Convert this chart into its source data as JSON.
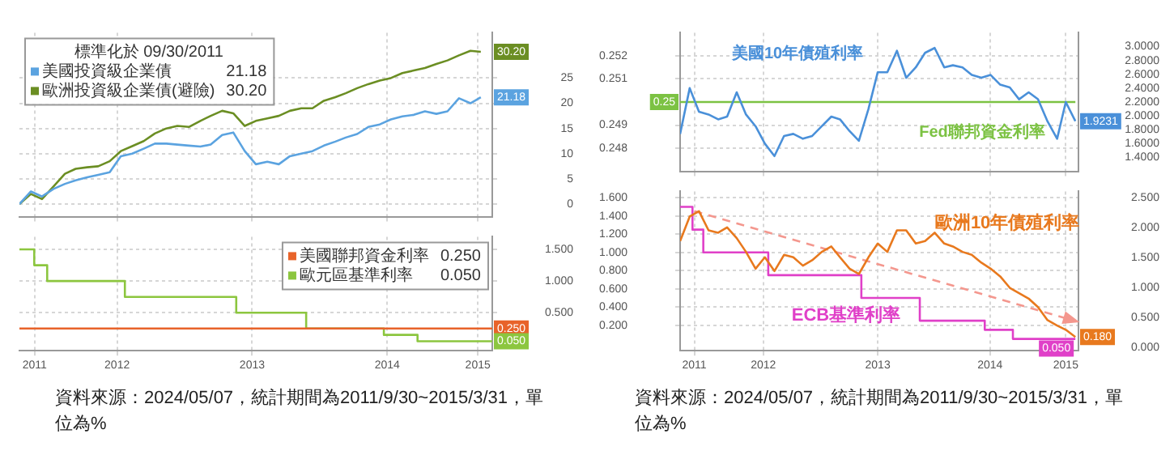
{
  "chart_data": [
    {
      "type": "line",
      "legend_title": "標準化於 09/30/2011",
      "legend": "top left",
      "grid": true,
      "tick_labels": "y",
      "x": [
        "2011-09-30",
        "2011-10-31",
        "2011-11-30",
        "2011-12-31",
        "2012-01-31",
        "2012-02-29",
        "2012-03-31",
        "2012-04-30",
        "2012-05-31",
        "2012-06-30",
        "2012-07-31",
        "2012-08-31",
        "2012-09-30",
        "2012-10-31",
        "2012-11-30",
        "2012-12-31",
        "2013-01-31",
        "2013-02-28",
        "2013-03-31",
        "2013-04-30",
        "2013-05-31",
        "2013-06-30",
        "2013-07-31",
        "2013-08-31",
        "2013-09-30",
        "2013-10-31",
        "2013-11-30",
        "2013-12-31",
        "2014-01-31",
        "2014-02-28",
        "2014-03-31",
        "2014-04-30",
        "2014-05-31",
        "2014-06-30",
        "2014-07-31",
        "2014-08-31",
        "2014-09-30",
        "2014-10-31",
        "2014-11-30",
        "2014-12-31",
        "2015-01-31",
        "2015-02-28"
      ],
      "xlim": [
        "2011-09-30",
        "2015-03-31"
      ],
      "xticks": [
        {
          "value": "2011-11-10",
          "label": null
        },
        {
          "value": "2012-06-20",
          "label": null
        },
        {
          "value": "2013-06-20",
          "label": null
        },
        {
          "value": "2014-06-20",
          "label": null
        },
        {
          "value": "2015-02-20",
          "label": null
        }
      ],
      "ylim": [
        -2.5,
        34
      ],
      "yticks": [
        0,
        5,
        10,
        15,
        20,
        25
      ],
      "series": [
        {
          "name": "美國投資級企業債",
          "color": "#5ba3e0",
          "values": [
            0,
            2.5,
            1.5,
            3,
            4,
            4.7,
            5.3,
            5.8,
            6.3,
            9.5,
            10,
            11,
            12,
            12,
            11.8,
            11.6,
            11.4,
            11.8,
            13.7,
            14.2,
            10.5,
            7.9,
            8.4,
            7.9,
            9.5,
            10,
            10.5,
            11.6,
            12.4,
            13.2,
            13.9,
            15.3,
            15.8,
            16.8,
            17.4,
            17.7,
            18.4,
            17.9,
            18.4,
            21,
            20,
            21.18
          ],
          "value_labels": [
            null,
            null,
            null,
            null,
            null,
            null,
            null,
            null,
            null,
            null,
            null,
            null,
            null,
            null,
            null,
            null,
            null,
            null,
            null,
            null,
            null,
            null,
            null,
            null,
            null,
            null,
            null,
            null,
            null,
            null,
            null,
            null,
            null,
            null,
            null,
            null,
            null,
            null,
            null,
            null,
            null,
            "21.18"
          ]
        },
        {
          "name": "歐洲投資級企業債(避險)",
          "color": "#6b8e23",
          "values": [
            0,
            2,
            1,
            3.5,
            6,
            7,
            7.3,
            7.5,
            8.5,
            10.5,
            11.5,
            12.5,
            14,
            15,
            15.5,
            15.3,
            16.5,
            17.5,
            18.5,
            18,
            15.5,
            16.5,
            17,
            17.5,
            18.5,
            19,
            19,
            20.5,
            21.2,
            22,
            23,
            23.8,
            24.5,
            25,
            26,
            26.5,
            27,
            27.8,
            28.5,
            29.5,
            30.4,
            30.2
          ],
          "value_labels": [
            null,
            null,
            null,
            null,
            null,
            null,
            null,
            null,
            null,
            null,
            null,
            null,
            null,
            null,
            null,
            null,
            null,
            null,
            null,
            null,
            null,
            null,
            null,
            null,
            null,
            null,
            null,
            null,
            null,
            null,
            null,
            null,
            null,
            null,
            null,
            null,
            null,
            null,
            null,
            null,
            null,
            "30.20"
          ]
        }
      ]
    },
    {
      "type": "step",
      "legend": "top right",
      "grid": true,
      "xlim": [
        "2011-09-30",
        "2015-03-31"
      ],
      "xticks": [
        {
          "value": "2011-11-10",
          "label": "2011"
        },
        {
          "value": "2012-06-20",
          "label": "2012"
        },
        {
          "value": "2013-06-20",
          "label": "2013"
        },
        {
          "value": "2014-06-20",
          "label": "2014"
        },
        {
          "value": "2015-02-20",
          "label": "2015"
        }
      ],
      "ylim": [
        -0.1,
        1.7
      ],
      "yticks": [
        {
          "value": 0.5,
          "label": "0.500"
        },
        {
          "value": 1,
          "label": "1.000"
        },
        {
          "value": 1.5,
          "label": "1.500"
        }
      ],
      "annotations": [
        "資料來源：2024/05/07，統計期間為2011/9/30~2015/3/31，單位為%"
      ],
      "series": [
        {
          "name": "美國聯邦資金利率",
          "color": "#e8632a",
          "x": [
            "2011-09-30",
            "2015-03-31"
          ],
          "values": [
            0.25,
            0.25
          ],
          "value_labels": [
            null,
            "0.250"
          ]
        },
        {
          "name": "歐元區基準利率",
          "color": "#8cc63f",
          "x": [
            "2011-09-30",
            "2011-11-09",
            "2011-12-14",
            "2012-07-11",
            "2013-05-08",
            "2013-11-13",
            "2014-06-11",
            "2014-09-10",
            "2015-03-31"
          ],
          "values": [
            1.5,
            1.25,
            1,
            0.75,
            0.5,
            0.25,
            0.15,
            0.05,
            0.05
          ],
          "value_labels": [
            null,
            null,
            null,
            null,
            null,
            null,
            null,
            null,
            "0.050"
          ]
        }
      ]
    },
    {
      "type": "line",
      "grid": true,
      "tick_labels": "y",
      "x": [
        "2011-09-30",
        "2011-10-31",
        "2011-11-30",
        "2011-12-31",
        "2012-01-31",
        "2012-02-29",
        "2012-03-31",
        "2012-04-30",
        "2012-05-31",
        "2012-06-30",
        "2012-07-31",
        "2012-08-31",
        "2012-09-30",
        "2012-10-31",
        "2012-11-30",
        "2012-12-31",
        "2013-01-31",
        "2013-02-28",
        "2013-03-31",
        "2013-04-30",
        "2013-05-31",
        "2013-06-30",
        "2013-07-31",
        "2013-08-31",
        "2013-09-30",
        "2013-10-31",
        "2013-11-30",
        "2013-12-31",
        "2014-01-31",
        "2014-02-28",
        "2014-03-31",
        "2014-04-30",
        "2014-05-31",
        "2014-06-30",
        "2014-07-31",
        "2014-08-31",
        "2014-09-30",
        "2014-10-31",
        "2014-11-30",
        "2014-12-31",
        "2015-01-31",
        "2015-02-28",
        "2015-03-31"
      ],
      "xlim": [
        "2011-09-30",
        "2015-04-10"
      ],
      "xticks": [
        {
          "value": "2011-11-15",
          "label": null
        },
        {
          "value": "2012-06-25",
          "label": null
        },
        {
          "value": "2013-06-30",
          "label": null
        },
        {
          "value": "2014-06-28",
          "label": null
        },
        {
          "value": "2015-02-28",
          "label": null
        }
      ],
      "ylim": [
        0.247,
        0.253
      ],
      "yticks": [
        0.248,
        0.249,
        0.251,
        0.252
      ],
      "y2lim": [
        1.2,
        3.2
      ],
      "y2ticks": [
        {
          "value": 1.4,
          "label": "1.4000"
        },
        {
          "value": 1.6,
          "label": "1.6000"
        },
        {
          "value": 1.8,
          "label": "1.8000"
        },
        {
          "value": 2,
          "label": "2.0000"
        },
        {
          "value": 2.2,
          "label": "2.2000"
        },
        {
          "value": 2.4,
          "label": "2.4000"
        },
        {
          "value": 2.6,
          "label": "2.6000"
        },
        {
          "value": 2.8,
          "label": "2.8000"
        },
        {
          "value": 3,
          "label": "3.0000"
        }
      ],
      "series": [
        {
          "name": "美國10年債殖利率",
          "color": "#4a90d9",
          "axis": "y2",
          "values": [
            1.74,
            2.4,
            2.06,
            2.02,
            1.95,
            1.99,
            2.34,
            2.02,
            1.85,
            1.6,
            1.42,
            1.71,
            1.74,
            1.67,
            1.71,
            1.85,
            1.99,
            1.95,
            1.78,
            1.64,
            2.1,
            2.63,
            2.63,
            2.94,
            2.55,
            2.7,
            2.91,
            2.98,
            2.7,
            2.73,
            2.7,
            2.59,
            2.55,
            2.59,
            2.45,
            2.41,
            2.24,
            2.34,
            2.24,
            1.92,
            1.67,
            2.2,
            1.9231
          ],
          "value_labels": [
            null,
            null,
            null,
            null,
            null,
            null,
            null,
            null,
            null,
            null,
            null,
            null,
            null,
            null,
            null,
            null,
            null,
            null,
            null,
            null,
            null,
            null,
            null,
            null,
            null,
            null,
            null,
            null,
            null,
            null,
            null,
            null,
            null,
            null,
            null,
            null,
            null,
            null,
            null,
            null,
            null,
            null,
            "1.9231"
          ]
        },
        {
          "name": "Fed聯邦資金利率",
          "color": "#7cc243",
          "x": [
            "2011-09-30",
            "2015-03-31"
          ],
          "values": [
            0.25,
            0.25
          ],
          "value_labels": [
            "0.25",
            null
          ]
        }
      ]
    },
    {
      "type": "line",
      "grid": true,
      "x": [
        "2011-09-30",
        "2011-10-31",
        "2011-11-30",
        "2011-12-31",
        "2012-01-31",
        "2012-02-29",
        "2012-03-31",
        "2012-04-30",
        "2012-05-31",
        "2012-06-30",
        "2012-07-31",
        "2012-08-31",
        "2012-09-30",
        "2012-10-31",
        "2012-11-30",
        "2012-12-31",
        "2013-01-31",
        "2013-02-28",
        "2013-03-31",
        "2013-04-30",
        "2013-05-31",
        "2013-06-30",
        "2013-07-31",
        "2013-08-31",
        "2013-09-30",
        "2013-10-31",
        "2013-11-30",
        "2013-12-31",
        "2014-01-31",
        "2014-02-28",
        "2014-03-31",
        "2014-04-30",
        "2014-05-31",
        "2014-06-30",
        "2014-07-31",
        "2014-08-31",
        "2014-09-30",
        "2014-10-31",
        "2014-11-30",
        "2014-12-31",
        "2015-01-31",
        "2015-02-28",
        "2015-03-31"
      ],
      "xlim": [
        "2011-09-30",
        "2015-04-10"
      ],
      "xticks": [
        {
          "value": "2011-11-15",
          "label": "2011"
        },
        {
          "value": "2012-06-25",
          "label": "2012"
        },
        {
          "value": "2013-06-30",
          "label": "2013"
        },
        {
          "value": "2014-06-28",
          "label": "2014"
        },
        {
          "value": "2015-02-28",
          "label": "2015"
        }
      ],
      "ylim": [
        -0.08,
        1.67
      ],
      "yticks": [
        {
          "value": 0.2,
          "label": "0.200"
        },
        {
          "value": 0.4,
          "label": "0.400"
        },
        {
          "value": 0.6,
          "label": "0.600"
        },
        {
          "value": 0.8,
          "label": "0.800"
        },
        {
          "value": 1,
          "label": "1.000"
        },
        {
          "value": 1.2,
          "label": "1.200"
        },
        {
          "value": 1.4,
          "label": "1.400"
        },
        {
          "value": 1.6,
          "label": "1.600"
        }
      ],
      "y2lim": [
        -0.05,
        2.61
      ],
      "y2ticks": [
        {
          "value": 0,
          "label": "0.000"
        },
        {
          "value": 0.5,
          "label": "0.500"
        },
        {
          "value": 1,
          "label": "1.000"
        },
        {
          "value": 1.5,
          "label": "1.500"
        },
        {
          "value": 2,
          "label": "2.000"
        },
        {
          "value": 2.5,
          "label": "2.500"
        }
      ],
      "annotations": [
        "資料來源：2024/05/07，統計期間為2011/9/30~2015/3/31，單位為%"
      ],
      "series": [
        {
          "name": "歐洲10年債殖利率",
          "color": "#e8791e",
          "axis": "y2",
          "values": [
            1.78,
            2.19,
            2.28,
            1.96,
            1.92,
            2.01,
            1.83,
            1.6,
            1.32,
            1.51,
            1.28,
            1.55,
            1.51,
            1.37,
            1.46,
            1.6,
            1.69,
            1.51,
            1.32,
            1.23,
            1.51,
            1.74,
            1.6,
            1.96,
            1.96,
            1.74,
            1.78,
            1.92,
            1.74,
            1.69,
            1.6,
            1.55,
            1.42,
            1.32,
            1.19,
            1,
            0.91,
            0.82,
            0.68,
            0.46,
            0.37,
            0.3,
            0.18
          ],
          "value_labels": [
            null,
            null,
            null,
            null,
            null,
            null,
            null,
            null,
            null,
            null,
            null,
            null,
            null,
            null,
            null,
            null,
            null,
            null,
            null,
            null,
            null,
            null,
            null,
            null,
            null,
            null,
            null,
            null,
            null,
            null,
            null,
            null,
            null,
            null,
            null,
            null,
            null,
            null,
            null,
            null,
            null,
            null,
            "0.180"
          ]
        },
        {
          "name": "ECB基準利率",
          "color": "#e040c8",
          "type": "step",
          "x": [
            "2011-09-30",
            "2011-11-09",
            "2011-12-14",
            "2012-07-11",
            "2013-05-08",
            "2013-11-13",
            "2014-06-11",
            "2014-09-10",
            "2015-03-31"
          ],
          "values": [
            1.5,
            1.25,
            1,
            0.75,
            0.5,
            0.25,
            0.15,
            0.05,
            0.05
          ],
          "value_labels": [
            null,
            null,
            null,
            null,
            null,
            null,
            null,
            null,
            "0.050"
          ]
        },
        {
          "color": "#f4978e",
          "type": "line",
          "axis": "y2",
          "line_style": "dashed",
          "x": [
            "2011-11-15",
            "2015-03-15"
          ],
          "values": [
            2.28,
            0.47
          ]
        }
      ]
    }
  ]
}
